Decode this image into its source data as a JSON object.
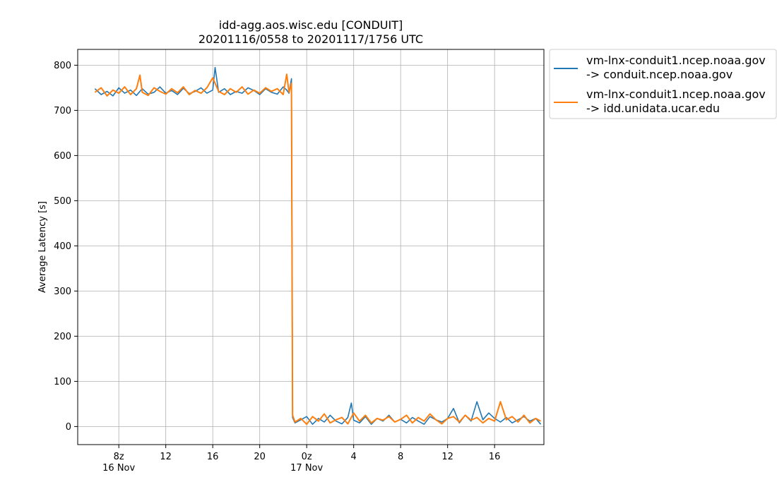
{
  "chart_data": {
    "type": "line",
    "title": "idd-agg.aos.wisc.edu [CONDUIT]",
    "subtitle": "20201116/0558 to 20201117/1756 UTC",
    "xlabel": "",
    "ylabel": "Average Latency [s]",
    "x_unit": "hours since 2020-11-16 00:00 UTC",
    "xlim": [
      4.5,
      44.2
    ],
    "ylim": [
      -40,
      835
    ],
    "grid": true,
    "legend_position": "outside-upper-right",
    "x_ticks": [
      {
        "value": 8,
        "label": "8z",
        "sublabel": "16 Nov"
      },
      {
        "value": 12,
        "label": "12",
        "sublabel": ""
      },
      {
        "value": 16,
        "label": "16",
        "sublabel": ""
      },
      {
        "value": 20,
        "label": "20",
        "sublabel": ""
      },
      {
        "value": 24,
        "label": "0z",
        "sublabel": "17 Nov"
      },
      {
        "value": 28,
        "label": "4",
        "sublabel": ""
      },
      {
        "value": 32,
        "label": "8",
        "sublabel": ""
      },
      {
        "value": 36,
        "label": "12",
        "sublabel": ""
      },
      {
        "value": 40,
        "label": "16",
        "sublabel": ""
      }
    ],
    "y_ticks": [
      0,
      100,
      200,
      300,
      400,
      500,
      600,
      700,
      800
    ],
    "series": [
      {
        "name_line1": "vm-lnx-conduit1.ncep.noaa.gov",
        "name_line2": "-> conduit.ncep.noaa.gov",
        "color": "#1f77b4",
        "x": [
          5.97,
          6.5,
          7.0,
          7.5,
          8.0,
          8.5,
          9.0,
          9.5,
          10.0,
          10.5,
          11.0,
          11.5,
          12.0,
          12.5,
          13.0,
          13.5,
          14.0,
          14.5,
          15.0,
          15.5,
          16.0,
          16.2,
          16.5,
          17.0,
          17.5,
          18.0,
          18.5,
          19.0,
          19.5,
          20.0,
          20.5,
          21.0,
          21.5,
          22.0,
          22.3,
          22.5,
          22.7,
          22.8,
          23.0,
          23.5,
          24.0,
          24.5,
          25.0,
          25.5,
          26.0,
          26.5,
          27.0,
          27.5,
          27.8,
          28.0,
          28.5,
          29.0,
          29.5,
          30.0,
          30.5,
          31.0,
          31.5,
          32.0,
          32.5,
          33.0,
          33.5,
          34.0,
          34.5,
          35.0,
          35.5,
          36.0,
          36.5,
          37.0,
          37.5,
          38.0,
          38.5,
          39.0,
          39.5,
          40.0,
          40.5,
          41.0,
          41.5,
          42.0,
          42.5,
          43.0,
          43.5,
          43.93
        ],
        "y": [
          748,
          735,
          742,
          732,
          750,
          738,
          745,
          733,
          748,
          736,
          740,
          752,
          738,
          744,
          735,
          749,
          737,
          742,
          750,
          738,
          745,
          795,
          740,
          748,
          735,
          742,
          738,
          750,
          744,
          735,
          748,
          740,
          736,
          752,
          745,
          738,
          770,
          20,
          8,
          15,
          22,
          5,
          18,
          10,
          25,
          12,
          6,
          20,
          52,
          14,
          8,
          22,
          5,
          18,
          12,
          25,
          10,
          16,
          8,
          20,
          12,
          5,
          22,
          15,
          10,
          18,
          40,
          8,
          25,
          12,
          55,
          15,
          30,
          18,
          10,
          20,
          8,
          15,
          22,
          12,
          18,
          5
        ]
      },
      {
        "name_line1": "vm-lnx-conduit1.ncep.noaa.gov",
        "name_line2": "-> idd.unidata.ucar.edu",
        "color": "#ff7f0e",
        "x": [
          5.97,
          6.5,
          7.0,
          7.5,
          8.0,
          8.5,
          9.0,
          9.5,
          9.8,
          10.0,
          10.5,
          11.0,
          11.5,
          12.0,
          12.5,
          13.0,
          13.5,
          14.0,
          14.5,
          15.0,
          15.5,
          16.0,
          16.5,
          17.0,
          17.5,
          18.0,
          18.5,
          19.0,
          19.5,
          20.0,
          20.5,
          21.0,
          21.5,
          22.0,
          22.3,
          22.5,
          22.7,
          22.8,
          23.0,
          23.5,
          24.0,
          24.5,
          25.0,
          25.5,
          26.0,
          26.5,
          27.0,
          27.5,
          28.0,
          28.5,
          29.0,
          29.5,
          30.0,
          30.5,
          31.0,
          31.5,
          32.0,
          32.5,
          33.0,
          33.5,
          34.0,
          34.5,
          35.0,
          35.5,
          36.0,
          36.5,
          37.0,
          37.5,
          38.0,
          38.5,
          39.0,
          39.5,
          40.0,
          40.5,
          41.0,
          41.5,
          42.0,
          42.5,
          43.0,
          43.5,
          43.93
        ],
        "y": [
          740,
          750,
          732,
          745,
          738,
          752,
          735,
          748,
          778,
          740,
          733,
          750,
          742,
          736,
          748,
          739,
          752,
          735,
          744,
          738,
          750,
          772,
          742,
          735,
          748,
          740,
          752,
          736,
          745,
          738,
          750,
          742,
          748,
          735,
          780,
          740,
          760,
          25,
          10,
          18,
          5,
          22,
          12,
          28,
          8,
          15,
          20,
          6,
          30,
          12,
          25,
          8,
          18,
          14,
          22,
          10,
          16,
          25,
          8,
          20,
          12,
          28,
          15,
          6,
          18,
          22,
          10,
          25,
          14,
          20,
          8,
          18,
          12,
          55,
          15,
          22,
          10,
          25,
          8,
          18,
          12
        ]
      }
    ]
  }
}
